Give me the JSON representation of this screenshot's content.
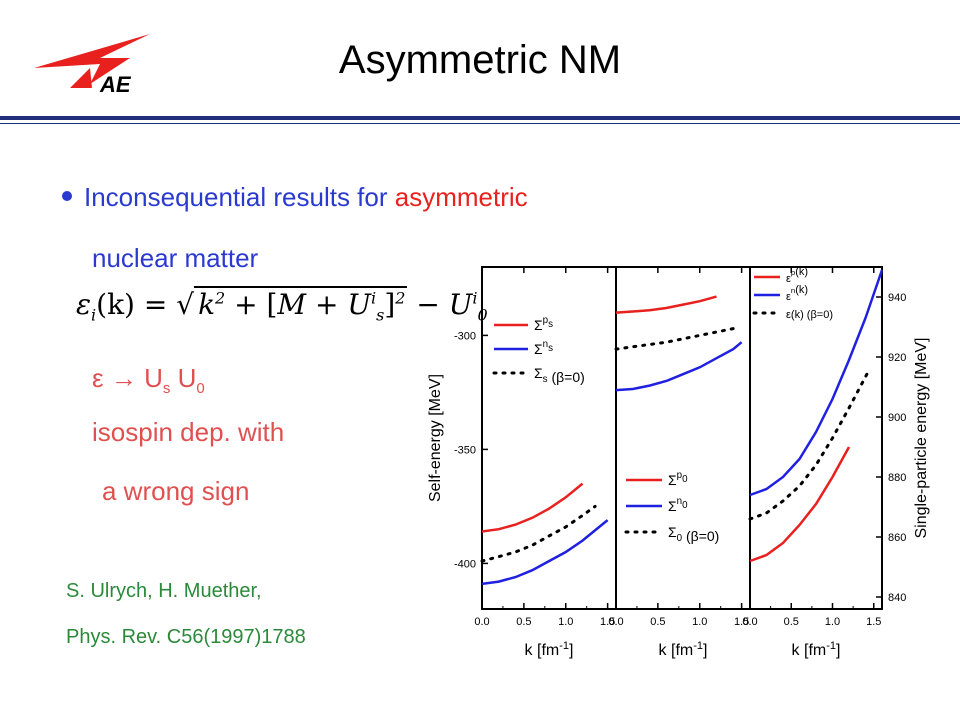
{
  "slide": {
    "title": "Asymmetric NM",
    "bullet_part1": "Inconsequential results for ",
    "bullet_part2": "asymmetric",
    "line2": "nuclear matter",
    "eps_line_eps": "ε",
    "eps_line_arrow": "→",
    "eps_line_U1": "U",
    "eps_line_sub1": "s",
    "eps_line_U2": "U",
    "eps_line_sub2": "0",
    "iso_line": "isospin dep. with",
    "sign_line": "a wrong sign",
    "ref1": "S. Ulrych, H. Muether,",
    "ref2": "Phys. Rev. C56(1997)1788",
    "formula": {
      "lhs": "ε",
      "lhs_sub": "i",
      "lhs_arg": "(k) = ",
      "k": "k",
      "k_sup": "2",
      "plus": " + [",
      "M": "M",
      "plus2": " + ",
      "U": "U",
      "U_sup": "i",
      "U_sub": "s",
      "bracket": "]",
      "bracket_sup": "2",
      "minus": " − ",
      "U0": "U",
      "U0_sup": "i",
      "U0_sub": "0"
    }
  },
  "colors": {
    "blue_text": "#2a3ad0",
    "red_text": "#e8201e",
    "red_line": "#e8201e",
    "blue_line": "#2020e0",
    "green_ref": "#2b8a3a",
    "rule": "#1f2f7a"
  },
  "icons": {
    "logo": "iae-logo"
  },
  "chart_data": [
    {
      "type": "line",
      "ylabel": "Self-energy [MeV]",
      "xlabel": "k [fm",
      "xlabel_sup": "-1",
      "xlabel_end": "]",
      "xlim": [
        0.0,
        1.6
      ],
      "ylim": [
        -420,
        -270
      ],
      "xticks": [
        "0.0",
        "0.5",
        "1.0",
        "1.5"
      ],
      "yticks": [
        -300,
        -350,
        -400
      ],
      "ytick_labels": [
        "-300",
        "-350",
        "-400"
      ],
      "legend": [
        {
          "label": "Σ",
          "sub": "s",
          "sup": "p",
          "style": "red"
        },
        {
          "label": "Σ",
          "sub": "s",
          "sup": "n",
          "style": "blue"
        },
        {
          "label": "Σ",
          "sub": "s",
          "sup": "",
          "suffix": " (β=0)",
          "style": "dotted"
        }
      ],
      "series": [
        {
          "style": "red",
          "x": [
            0.0,
            0.2,
            0.4,
            0.6,
            0.8,
            1.0,
            1.2
          ],
          "y": [
            -386,
            -385,
            -383,
            -380,
            -376,
            -371,
            -365
          ]
        },
        {
          "style": "blue",
          "x": [
            0.0,
            0.2,
            0.4,
            0.6,
            0.8,
            1.0,
            1.2,
            1.4,
            1.5
          ],
          "y": [
            -409,
            -408,
            -406,
            -403,
            -399,
            -395,
            -390,
            -384,
            -381
          ]
        },
        {
          "style": "dotted",
          "x": [
            0.0,
            0.2,
            0.4,
            0.6,
            0.8,
            1.0,
            1.2,
            1.35
          ],
          "y": [
            -399,
            -397,
            -395,
            -392,
            -388,
            -384,
            -379,
            -375
          ]
        }
      ]
    },
    {
      "type": "line",
      "xlabel": "k [fm",
      "xlabel_sup": "-1",
      "xlabel_end": "]",
      "xlim": [
        0.0,
        1.6
      ],
      "ylim": [
        0,
        150
      ],
      "xticks": [
        "0.0",
        "0.5",
        "1.0",
        "1.5"
      ],
      "legend": [
        {
          "label": "Σ",
          "sub": "0",
          "sup": "p",
          "style": "red"
        },
        {
          "label": "Σ",
          "sub": "0",
          "sup": "n",
          "style": "blue"
        },
        {
          "label": "Σ",
          "sub": "0",
          "sup": "",
          "suffix": " (β=0)",
          "style": "dotted"
        }
      ],
      "series": [
        {
          "style": "red",
          "x": [
            0.0,
            0.2,
            0.4,
            0.6,
            0.8,
            1.0,
            1.2
          ],
          "y": [
            130,
            130.5,
            131,
            132,
            133.5,
            135,
            137
          ]
        },
        {
          "style": "blue",
          "x": [
            0.0,
            0.2,
            0.4,
            0.6,
            0.8,
            1.0,
            1.2,
            1.4,
            1.5
          ],
          "y": [
            96,
            96.5,
            98,
            100,
            103,
            106,
            110,
            114,
            117
          ]
        },
        {
          "style": "dotted",
          "x": [
            0.0,
            0.2,
            0.4,
            0.6,
            0.8,
            1.0,
            1.2,
            1.4
          ],
          "y": [
            114,
            115,
            116,
            117,
            118.5,
            120,
            121.5,
            123
          ]
        }
      ]
    },
    {
      "type": "line",
      "ylabel": "Single-particle energy [MeV]",
      "xlabel": "k [fm",
      "xlabel_sup": "-1",
      "xlabel_end": "]",
      "xlim": [
        0.0,
        1.6
      ],
      "ylim": [
        836,
        950
      ],
      "xticks": [
        "0.0",
        "0.5",
        "1.0",
        "1.5"
      ],
      "yticks": [
        940,
        920,
        900,
        880,
        860,
        840
      ],
      "ytick_labels": [
        "940",
        "920",
        "900",
        "880",
        "860",
        "840"
      ],
      "legend": [
        {
          "label": "ε",
          "sup": "p",
          "suffix": "(k)",
          "style": "red"
        },
        {
          "label": "ε",
          "sup": "n",
          "suffix": "(k)",
          "style": "blue"
        },
        {
          "label": "ε",
          "sup": "",
          "suffix": "(k) (β=0)",
          "style": "dotted"
        }
      ],
      "series": [
        {
          "style": "red",
          "x": [
            0.0,
            0.2,
            0.4,
            0.6,
            0.8,
            1.0,
            1.2
          ],
          "y": [
            852,
            854,
            858,
            864,
            871,
            880,
            890
          ]
        },
        {
          "style": "blue",
          "x": [
            0.0,
            0.2,
            0.4,
            0.6,
            0.8,
            1.0,
            1.2,
            1.4,
            1.6
          ],
          "y": [
            874,
            876,
            880,
            886,
            895,
            906,
            919,
            933,
            949
          ]
        },
        {
          "style": "dotted",
          "x": [
            0.0,
            0.2,
            0.4,
            0.6,
            0.8,
            1.0,
            1.2,
            1.45
          ],
          "y": [
            866,
            868,
            872,
            877,
            884,
            893,
            903,
            916
          ]
        }
      ]
    }
  ]
}
